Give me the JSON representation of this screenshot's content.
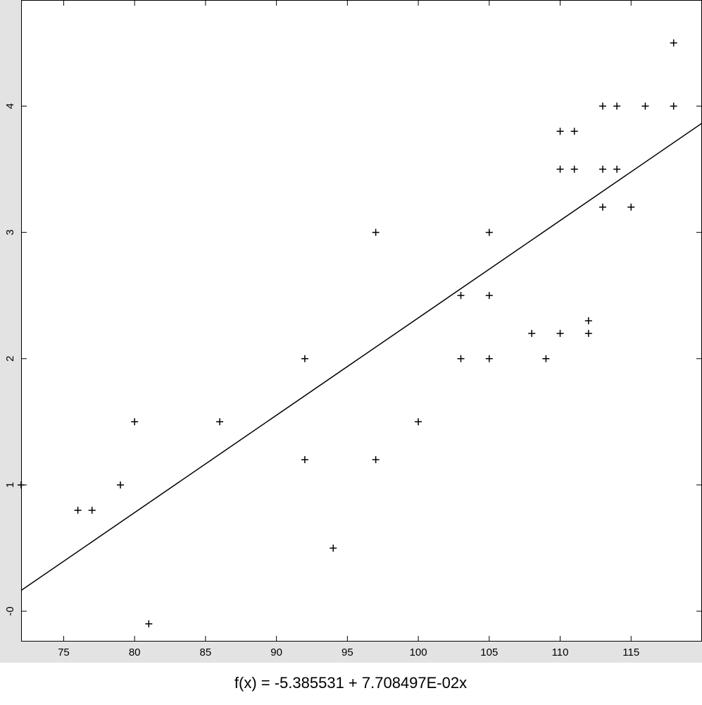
{
  "chart_data": {
    "type": "scatter",
    "x": [
      72,
      76,
      77,
      79,
      80,
      81,
      86,
      92,
      92,
      94,
      97,
      97,
      100,
      103,
      103,
      105,
      105,
      105,
      108,
      109,
      110,
      110,
      110,
      111,
      111,
      112,
      112,
      113,
      113,
      113,
      114,
      114,
      115,
      116,
      118,
      118
    ],
    "values": [
      1,
      0.8,
      0.8,
      1,
      1.5,
      -0.1,
      1.5,
      2,
      1.2,
      0.5,
      3,
      1.2,
      1.5,
      2.5,
      2,
      3,
      2.5,
      2,
      2.2,
      2,
      2.2,
      3.8,
      3.5,
      3.8,
      3.5,
      2.3,
      2.2,
      4,
      3.5,
      3.2,
      4,
      3.5,
      3.2,
      4,
      4.5,
      4
    ],
    "color": "#000000",
    "fit": {
      "intercept": -5.385531,
      "slope": 0.07708497
    },
    "fit_label": "f(x) = -5.385531 + 7.708497E-02x",
    "xlim": [
      72,
      120
    ],
    "ylim": [
      -0.24,
      4.84
    ],
    "xticks": [
      75,
      80,
      85,
      90,
      95,
      100,
      105,
      110,
      115
    ],
    "yticks": [
      {
        "value": 0,
        "label": "-0"
      },
      1,
      2,
      3,
      4
    ]
  }
}
